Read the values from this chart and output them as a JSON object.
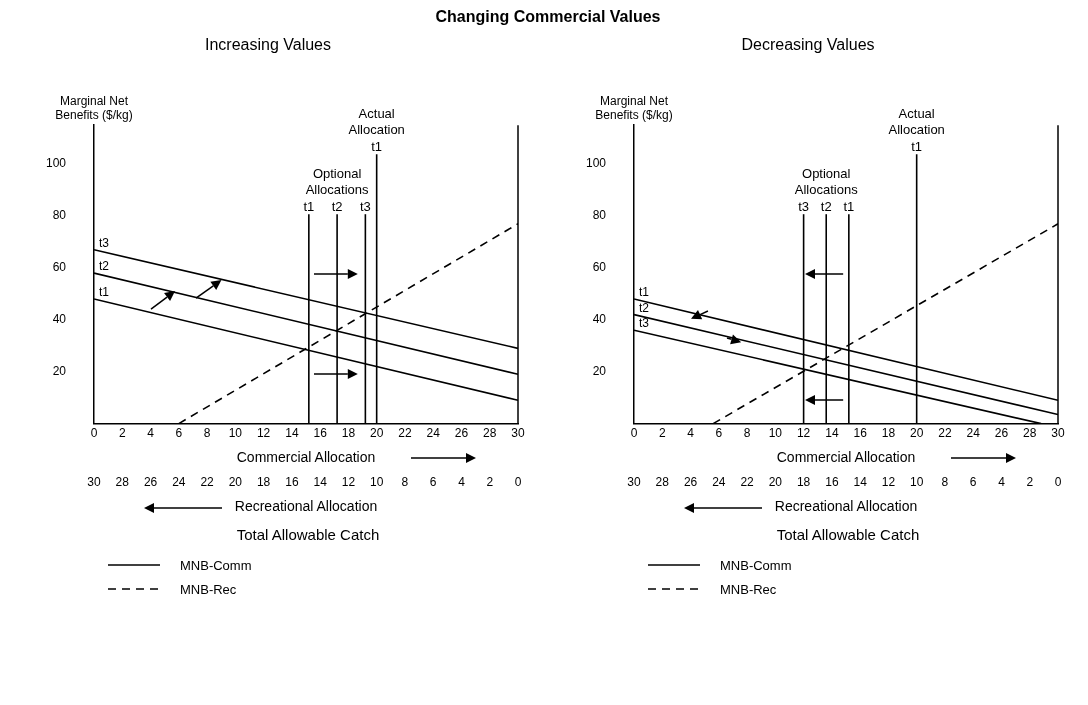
{
  "chart_data": [
    {
      "type": "line",
      "title": "Increasing Values",
      "ylabel": "Marginal Net Benefits ($/kg)",
      "xlabel": "Commercial Allocation",
      "x2label": "Recreational Allocation",
      "xlim": [
        0,
        30
      ],
      "xticks": [
        0,
        2,
        4,
        6,
        8,
        10,
        12,
        14,
        16,
        18,
        20,
        22,
        24,
        26,
        28,
        30
      ],
      "x2lim": [
        30,
        0
      ],
      "x2ticks": [
        30,
        28,
        26,
        24,
        22,
        20,
        18,
        16,
        14,
        12,
        10,
        8,
        6,
        4,
        2,
        0
      ],
      "ylim": [
        0,
        115
      ],
      "yticks": [
        20,
        40,
        60,
        80,
        100
      ],
      "marker": "none",
      "legend": "bottom left",
      "series": [
        {
          "name": "t3",
          "color": "#000000",
          "x": [
            0,
            30
          ],
          "values": [
            67,
            29
          ]
        },
        {
          "name": "t2",
          "color": "#000000",
          "x": [
            0,
            30
          ],
          "values": [
            58,
            19
          ]
        },
        {
          "name": "t1",
          "color": "#000000",
          "x": [
            0,
            30
          ],
          "values": [
            48,
            9
          ]
        },
        {
          "name": "MNB-Rec",
          "color": "#000000",
          "x": [
            6,
            30
          ],
          "values": [
            0,
            77
          ],
          "line_style": "dashed"
        }
      ],
      "ref_lines": [
        {
          "axis": "x",
          "value": 15.2,
          "label": "t1"
        },
        {
          "axis": "x",
          "value": 17.2,
          "label": "t2"
        },
        {
          "axis": "x",
          "value": 19.2,
          "label": "t3"
        },
        {
          "axis": "x",
          "value": 20,
          "label": "t1"
        }
      ],
      "annotations": [
        "Changing Commercial Values",
        "Optional Allocations",
        "Actual Allocation",
        "Total Allowable Catch",
        "MNB-Comm"
      ]
    },
    {
      "type": "line",
      "title": "Decreasing Values",
      "ylabel": "Marginal Net Benefits ($/kg)",
      "xlabel": "Commercial Allocation",
      "x2label": "Recreational Allocation",
      "xlim": [
        0,
        30
      ],
      "xticks": [
        0,
        2,
        4,
        6,
        8,
        10,
        12,
        14,
        16,
        18,
        20,
        22,
        24,
        26,
        28,
        30
      ],
      "x2lim": [
        30,
        0
      ],
      "x2ticks": [
        30,
        28,
        26,
        24,
        22,
        20,
        18,
        16,
        14,
        12,
        10,
        8,
        6,
        4,
        2,
        0
      ],
      "ylim": [
        0,
        115
      ],
      "yticks": [
        20,
        40,
        60,
        80,
        100
      ],
      "marker": "none",
      "legend": "bottom left",
      "series": [
        {
          "name": "t1",
          "color": "#000000",
          "x": [
            0,
            30
          ],
          "values": [
            48,
            9
          ]
        },
        {
          "name": "t2",
          "color": "#000000",
          "x": [
            0,
            30
          ],
          "values": [
            42,
            3.5
          ]
        },
        {
          "name": "t3",
          "color": "#000000",
          "x": [
            0,
            28.8
          ],
          "values": [
            36,
            0
          ]
        },
        {
          "name": "MNB-Rec",
          "color": "#000000",
          "x": [
            5.6,
            30
          ],
          "values": [
            0,
            77
          ],
          "line_style": "dashed"
        }
      ],
      "ref_lines": [
        {
          "axis": "x",
          "value": 12,
          "label": "t3"
        },
        {
          "axis": "x",
          "value": 13.6,
          "label": "t2"
        },
        {
          "axis": "x",
          "value": 15.2,
          "label": "t1"
        },
        {
          "axis": "x",
          "value": 20,
          "label": "t1"
        }
      ],
      "annotations": [
        "Optional Allocations",
        "Actual Allocation",
        "Total Allowable Catch",
        "MNB-Comm"
      ]
    }
  ]
}
